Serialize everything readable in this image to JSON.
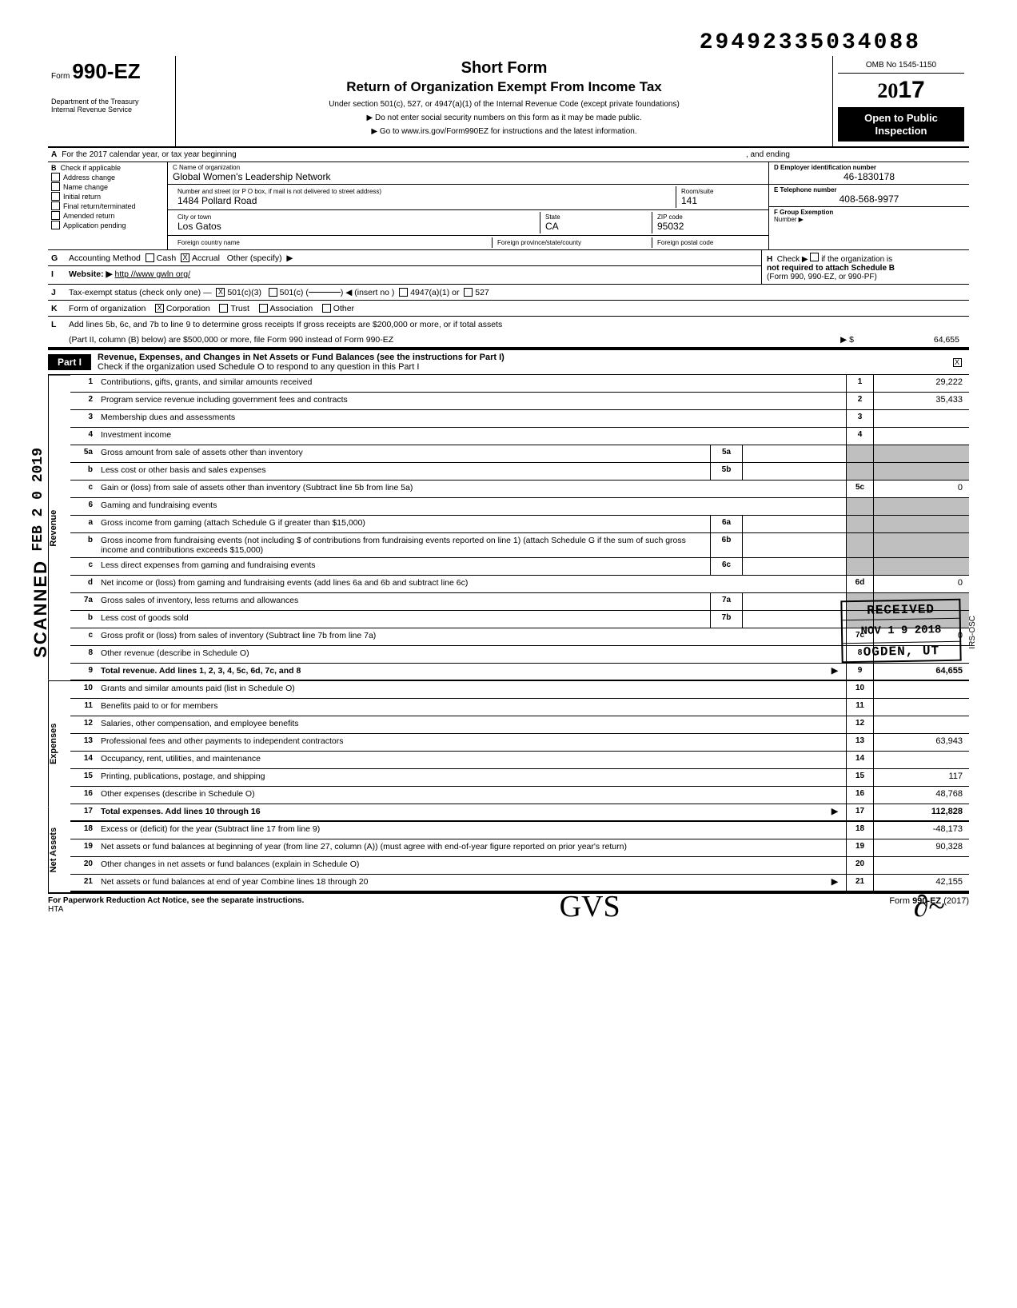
{
  "dln": "29492335034088",
  "form": {
    "label": "Form",
    "number": "990-EZ"
  },
  "dept": "Department of the Treasury\nInternal Revenue Service",
  "title": {
    "main": "Short Form",
    "sub": "Return of Organization Exempt From Income Tax",
    "line1": "Under section 501(c), 527, or 4947(a)(1) of the Internal Revenue Code (except private foundations)",
    "line2": "▶  Do not enter social security numbers on this form as it may be made public.",
    "line3": "▶  Go to www.irs.gov/Form990EZ for instructions and the latest information."
  },
  "yearbox": {
    "omb": "OMB No 1545-1150",
    "year_prefix": "20",
    "year_suffix": "17",
    "open1": "Open to Public",
    "open2": "Inspection"
  },
  "lineA": {
    "lbl": "A",
    "text": "For the 2017 calendar year, or tax year beginning",
    "and": ", and ending"
  },
  "colB": {
    "lbl": "B",
    "check_if": "Check if applicable",
    "opts": [
      "Address change",
      "Name change",
      "Initial return",
      "Final return/terminated",
      "Amended return",
      "Application pending"
    ]
  },
  "colC": {
    "name_lbl": "C  Name of organization",
    "name": "Global Women's Leadership Network",
    "addr_lbl": "Number and street (or P O box, if mail is not delivered to street address)",
    "room_lbl": "Room/suite",
    "addr": "1484 Pollard Road",
    "room": "141",
    "city_lbl": "City or town",
    "state_lbl": "State",
    "zip_lbl": "ZIP code",
    "city": "Los Gatos",
    "state": "CA",
    "zip": "95032",
    "foreign_lbl": "Foreign country name",
    "fps_lbl": "Foreign province/state/county",
    "fpc_lbl": "Foreign postal code"
  },
  "colD": {
    "ein_lbl": "D  Employer identification number",
    "ein": "46-1830178",
    "tel_lbl": "E  Telephone number",
    "tel": "408-568-9977",
    "grp_lbl": "F  Group Exemption",
    "grp2": "Number ▶"
  },
  "lineG": {
    "lbl": "G",
    "text": "Accounting Method",
    "cash": "Cash",
    "accrual": "Accrual",
    "other": "Other (specify)"
  },
  "lineH": {
    "lbl": "H",
    "text": "Check ▶",
    "if": "if the organization is",
    "not": "not required to attach Schedule B",
    "form": "(Form 990, 990-EZ, or 990-PF)"
  },
  "lineI": {
    "lbl": "I",
    "text": "Website: ▶",
    "val": "http //www gwln org/"
  },
  "lineJ": {
    "lbl": "J",
    "text": "Tax-exempt status (check only one) —",
    "a": "501(c)(3)",
    "b": "501(c) (",
    "ins": ") ◀ (insert no )",
    "c": "4947(a)(1) or",
    "d": "527"
  },
  "lineK": {
    "lbl": "K",
    "text": "Form of organization",
    "corp": "Corporation",
    "trust": "Trust",
    "assoc": "Association",
    "other": "Other"
  },
  "lineL": {
    "lbl": "L",
    "text1": "Add lines 5b, 6c, and 7b to line 9 to determine gross receipts  If gross receipts are $200,000 or more, or if total assets",
    "text2": "(Part II, column (B) below) are $500,000 or more, file Form 990 instead of Form 990-EZ",
    "arrow": "▶ $",
    "val": "64,655"
  },
  "partI": {
    "tab": "Part I",
    "title": "Revenue, Expenses, and Changes in Net Assets or Fund Balances (see the instructions for Part I)",
    "check": "Check if the organization used Schedule O to respond to any question in this Part I"
  },
  "sidelabels": {
    "rev": "Revenue",
    "exp": "Expenses",
    "net": "Net Assets"
  },
  "lines": {
    "l1": {
      "n": "1",
      "d": "Contributions, gifts, grants, and similar amounts received",
      "rn": "1",
      "rv": "29,222"
    },
    "l2": {
      "n": "2",
      "d": "Program service revenue including government fees and contracts",
      "rn": "2",
      "rv": "35,433"
    },
    "l3": {
      "n": "3",
      "d": "Membership dues and assessments",
      "rn": "3",
      "rv": ""
    },
    "l4": {
      "n": "4",
      "d": "Investment income",
      "rn": "4",
      "rv": ""
    },
    "l5a": {
      "n": "5a",
      "d": "Gross amount from sale of assets other than inventory",
      "mn": "5a"
    },
    "l5b": {
      "n": "b",
      "d": "Less  cost or other basis and sales expenses",
      "mn": "5b"
    },
    "l5c": {
      "n": "c",
      "d": "Gain or (loss) from sale of assets other than inventory (Subtract line 5b from line 5a)",
      "rn": "5c",
      "rv": "0"
    },
    "l6": {
      "n": "6",
      "d": "Gaming and fundraising events"
    },
    "l6a": {
      "n": "a",
      "d": "Gross income from gaming (attach Schedule G if greater than $15,000)",
      "mn": "6a"
    },
    "l6b": {
      "n": "b",
      "d": "Gross income from fundraising events (not including   $                  of contributions from fundraising events reported on line 1) (attach Schedule G if the sum of such gross income and contributions exceeds $15,000)",
      "mn": "6b"
    },
    "l6c": {
      "n": "c",
      "d": "Less  direct expenses from gaming and fundraising events",
      "mn": "6c"
    },
    "l6d": {
      "n": "d",
      "d": "Net income or (loss) from gaming and fundraising events (add lines 6a and 6b and subtract line 6c)",
      "rn": "6d",
      "rv": "0"
    },
    "l7a": {
      "n": "7a",
      "d": "Gross sales of inventory, less returns and allowances",
      "mn": "7a"
    },
    "l7b": {
      "n": "b",
      "d": "Less  cost of goods sold",
      "mn": "7b"
    },
    "l7c": {
      "n": "c",
      "d": "Gross profit or (loss) from sales of inventory (Subtract line 7b from line 7a)",
      "rn": "7c",
      "rv": "0"
    },
    "l8": {
      "n": "8",
      "d": "Other revenue (describe in Schedule O)",
      "rn": "8",
      "rv": ""
    },
    "l9": {
      "n": "9",
      "d": "Total revenue. Add lines 1, 2, 3, 4, 5c, 6d, 7c, and 8",
      "rn": "9",
      "rv": "64,655",
      "arrow": "▶"
    },
    "l10": {
      "n": "10",
      "d": "Grants and similar amounts paid (list in Schedule O)",
      "rn": "10",
      "rv": ""
    },
    "l11": {
      "n": "11",
      "d": "Benefits paid to or for members",
      "rn": "11",
      "rv": ""
    },
    "l12": {
      "n": "12",
      "d": "Salaries, other compensation, and employee benefits",
      "rn": "12",
      "rv": ""
    },
    "l13": {
      "n": "13",
      "d": "Professional fees and other payments to independent contractors",
      "rn": "13",
      "rv": "63,943"
    },
    "l14": {
      "n": "14",
      "d": "Occupancy, rent, utilities, and maintenance",
      "rn": "14",
      "rv": ""
    },
    "l15": {
      "n": "15",
      "d": "Printing, publications, postage, and shipping",
      "rn": "15",
      "rv": "117"
    },
    "l16": {
      "n": "16",
      "d": "Other expenses (describe in Schedule O)",
      "rn": "16",
      "rv": "48,768"
    },
    "l17": {
      "n": "17",
      "d": "Total expenses. Add lines 10 through 16",
      "rn": "17",
      "rv": "112,828",
      "arrow": "▶"
    },
    "l18": {
      "n": "18",
      "d": "Excess or (deficit) for the year (Subtract line 17 from line 9)",
      "rn": "18",
      "rv": "-48,173"
    },
    "l19": {
      "n": "19",
      "d": "Net assets or fund balances at beginning of year (from line 27, column (A)) (must agree with end-of-year figure reported on prior year's return)",
      "rn": "19",
      "rv": "90,328"
    },
    "l20": {
      "n": "20",
      "d": "Other changes in net assets or fund balances (explain in Schedule O)",
      "rn": "20",
      "rv": ""
    },
    "l21": {
      "n": "21",
      "d": "Net assets or fund balances at end of year  Combine lines 18 through 20",
      "rn": "21",
      "rv": "42,155",
      "arrow": "▶"
    }
  },
  "footer": {
    "left": "For Paperwork Reduction Act Notice, see the separate instructions.",
    "hta": "HTA",
    "right": "Form 990-EZ (2017)"
  },
  "stamps": {
    "received": {
      "r1": "RECEIVED",
      "r2": "NOV 1 9 2018",
      "r3": "OGDEN, UT"
    },
    "scanned": "SCANNED",
    "date": "FEB 2 0 2019",
    "irs": "IRS-OSC",
    "initials": "GVS",
    "sig": "∂~"
  },
  "checkmarks": {
    "accrual": "X",
    "c3": "X",
    "corp": "X",
    "partI": "X"
  },
  "year_outline": "⓶⓪"
}
